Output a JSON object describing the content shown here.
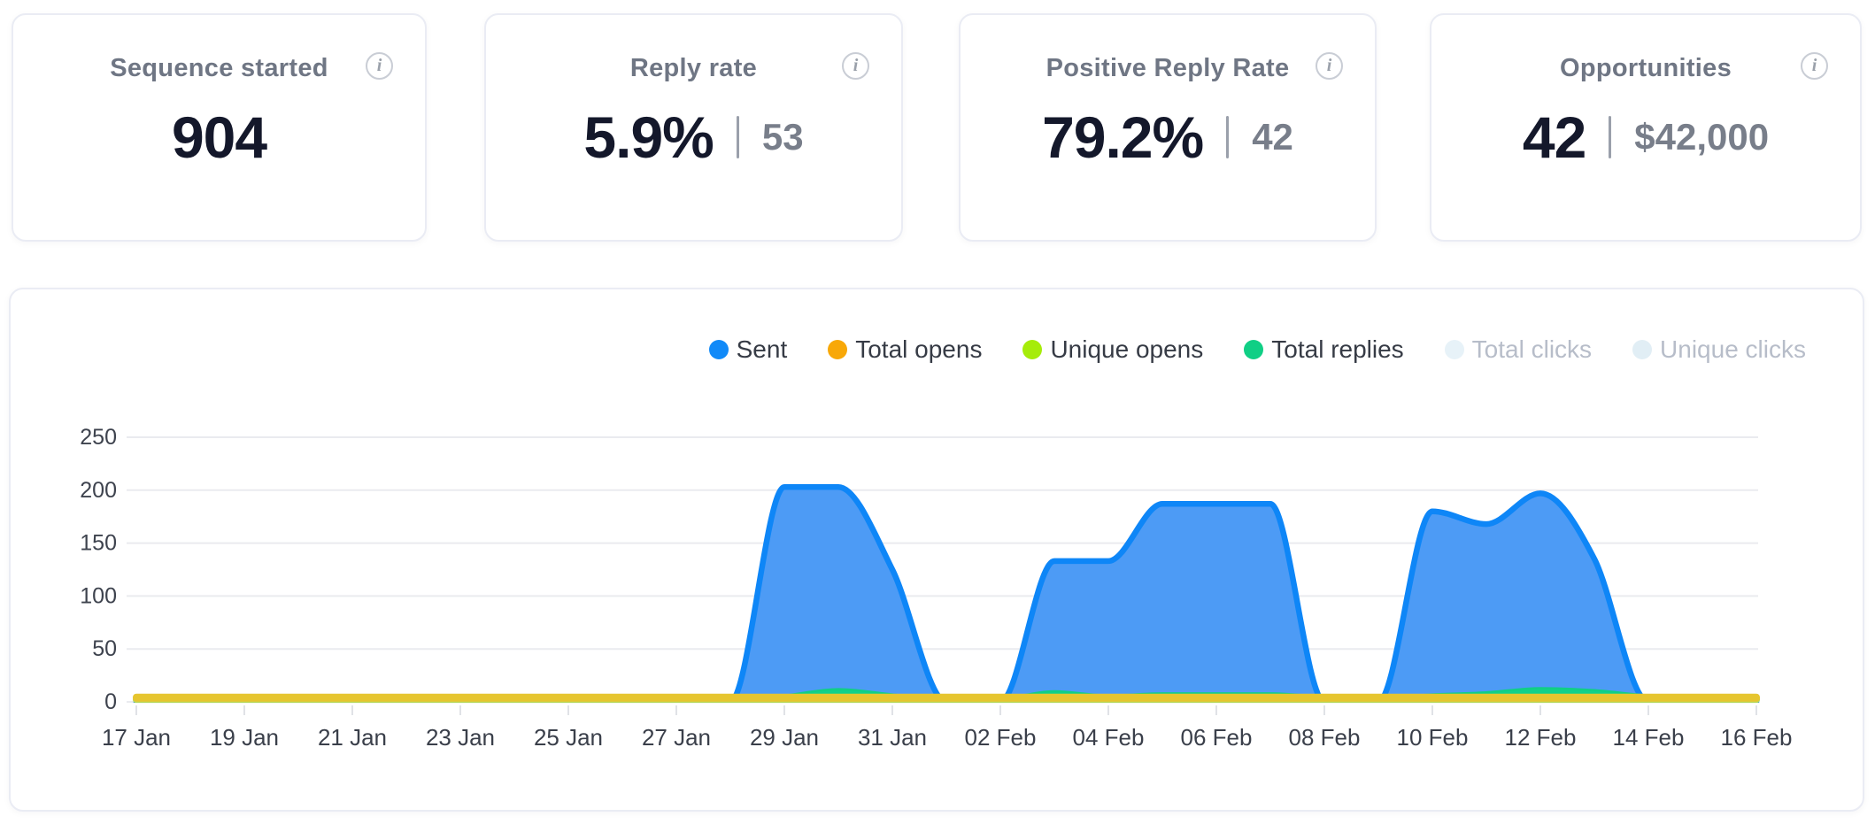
{
  "icons": {
    "info": "i"
  },
  "stat_cards": [
    {
      "title": "Sequence started",
      "value": "904",
      "secondary": ""
    },
    {
      "title": "Reply rate",
      "value": "5.9%",
      "secondary": "53"
    },
    {
      "title": "Positive Reply Rate",
      "value": "79.2%",
      "secondary": "42"
    },
    {
      "title": "Opportunities",
      "value": "42",
      "secondary": "$42,000"
    }
  ],
  "chart_data": {
    "type": "area",
    "title": "",
    "categories": [
      "17 Jan",
      "18 Jan",
      "19 Jan",
      "20 Jan",
      "21 Jan",
      "22 Jan",
      "23 Jan",
      "24 Jan",
      "25 Jan",
      "26 Jan",
      "27 Jan",
      "28 Jan",
      "29 Jan",
      "30 Jan",
      "31 Jan",
      "01 Feb",
      "02 Feb",
      "03 Feb",
      "04 Feb",
      "05 Feb",
      "06 Feb",
      "07 Feb",
      "08 Feb",
      "09 Feb",
      "10 Feb",
      "11 Feb",
      "12 Feb",
      "13 Feb",
      "14 Feb",
      "15 Feb",
      "16 Feb"
    ],
    "x_tick_labels": [
      "17 Jan",
      "19 Jan",
      "21 Jan",
      "23 Jan",
      "25 Jan",
      "27 Jan",
      "29 Jan",
      "31 Jan",
      "02 Feb",
      "04 Feb",
      "06 Feb",
      "08 Feb",
      "10 Feb",
      "12 Feb",
      "14 Feb",
      "16 Feb"
    ],
    "ylim": [
      0,
      250
    ],
    "yticks": [
      0,
      50,
      100,
      150,
      200,
      250
    ],
    "grid": true,
    "legend_position": "top-right",
    "series": [
      {
        "name": "Sent",
        "legend_color": "#118af8",
        "stroke": "#0e86f7",
        "fill": "#4d9bf5",
        "enabled": true,
        "values": [
          0,
          0,
          0,
          0,
          0,
          0,
          0,
          0,
          0,
          0,
          0,
          0,
          203,
          203,
          125,
          0,
          0,
          133,
          133,
          187,
          187,
          187,
          0,
          0,
          180,
          168,
          197,
          135,
          0,
          0,
          0
        ]
      },
      {
        "name": "Total opens",
        "legend_color": "#f8a808",
        "stroke": "#e6c52f",
        "fill": "#e6c52f",
        "enabled": true,
        "values": [
          4,
          4,
          4,
          4,
          4,
          4,
          4,
          4,
          4,
          4,
          4,
          4,
          4,
          4,
          4,
          4,
          4,
          4,
          4,
          4,
          4,
          4,
          4,
          4,
          4,
          4,
          4,
          4,
          4,
          4,
          4
        ]
      },
      {
        "name": "Unique opens",
        "legend_color": "#a6ec0a",
        "stroke": "#b5d75e",
        "fill": "#b5d75e",
        "enabled": true,
        "values": [
          2,
          2,
          2,
          2,
          2,
          2,
          2,
          2,
          2,
          2,
          2,
          2,
          2,
          2,
          2,
          2,
          2,
          2,
          2,
          2,
          2,
          2,
          2,
          2,
          2,
          2,
          2,
          2,
          2,
          2,
          2
        ]
      },
      {
        "name": "Total replies",
        "legend_color": "#10cf85",
        "stroke": "#10cf85",
        "fill": "#12d18a",
        "enabled": true,
        "values": [
          0,
          0,
          0,
          0,
          0,
          0,
          0,
          0,
          0,
          0,
          0,
          1,
          6,
          12,
          7,
          2,
          3,
          10,
          6,
          8,
          8,
          8,
          5,
          4,
          7,
          9,
          13,
          11,
          6,
          3,
          2
        ]
      },
      {
        "name": "Total clicks",
        "legend_color": "#e7f2f8",
        "stroke": "",
        "fill": "",
        "enabled": false,
        "values": null
      },
      {
        "name": "Unique clicks",
        "legend_color": "#e1eef5",
        "stroke": "",
        "fill": "",
        "enabled": false,
        "values": null
      }
    ]
  }
}
